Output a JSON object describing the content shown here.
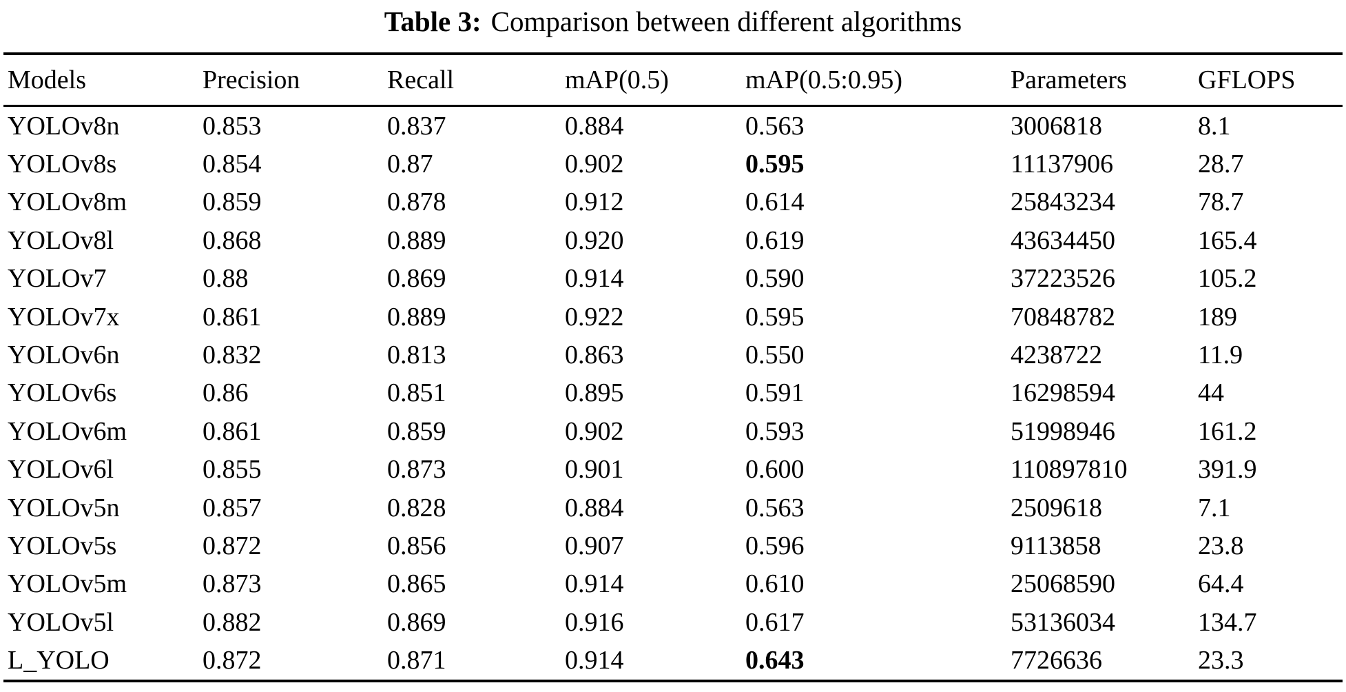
{
  "caption": {
    "label": "Table 3:",
    "text": "Comparison between different algorithms"
  },
  "table": {
    "columns": [
      "Models",
      "Precision",
      "Recall",
      "mAP(0.5)",
      "mAP(0.5:0.95)",
      "Parameters",
      "GFLOPS"
    ],
    "rows": [
      {
        "cells": [
          "YOLOv8n",
          "0.853",
          "0.837",
          "0.884",
          "0.563",
          "3006818",
          "8.1"
        ],
        "bold_cols": []
      },
      {
        "cells": [
          "YOLOv8s",
          "0.854",
          "0.87",
          "0.902",
          "0.595",
          "11137906",
          "28.7"
        ],
        "bold_cols": [
          4
        ]
      },
      {
        "cells": [
          "YOLOv8m",
          "0.859",
          "0.878",
          "0.912",
          "0.614",
          "25843234",
          "78.7"
        ],
        "bold_cols": []
      },
      {
        "cells": [
          "YOLOv8l",
          "0.868",
          "0.889",
          "0.920",
          "0.619",
          "43634450",
          "165.4"
        ],
        "bold_cols": []
      },
      {
        "cells": [
          "YOLOv7",
          "0.88",
          "0.869",
          "0.914",
          "0.590",
          "37223526",
          "105.2"
        ],
        "bold_cols": []
      },
      {
        "cells": [
          "YOLOv7x",
          "0.861",
          "0.889",
          "0.922",
          "0.595",
          "70848782",
          "189"
        ],
        "bold_cols": []
      },
      {
        "cells": [
          "YOLOv6n",
          "0.832",
          "0.813",
          "0.863",
          "0.550",
          "4238722",
          "11.9"
        ],
        "bold_cols": []
      },
      {
        "cells": [
          "YOLOv6s",
          "0.86",
          "0.851",
          "0.895",
          "0.591",
          "16298594",
          "44"
        ],
        "bold_cols": []
      },
      {
        "cells": [
          "YOLOv6m",
          "0.861",
          "0.859",
          "0.902",
          "0.593",
          "51998946",
          "161.2"
        ],
        "bold_cols": []
      },
      {
        "cells": [
          "YOLOv6l",
          "0.855",
          "0.873",
          "0.901",
          "0.600",
          "110897810",
          "391.9"
        ],
        "bold_cols": []
      },
      {
        "cells": [
          "YOLOv5n",
          "0.857",
          "0.828",
          "0.884",
          "0.563",
          "2509618",
          "7.1"
        ],
        "bold_cols": []
      },
      {
        "cells": [
          "YOLOv5s",
          "0.872",
          "0.856",
          "0.907",
          "0.596",
          "9113858",
          "23.8"
        ],
        "bold_cols": []
      },
      {
        "cells": [
          "YOLOv5m",
          "0.873",
          "0.865",
          "0.914",
          "0.610",
          "25068590",
          "64.4"
        ],
        "bold_cols": []
      },
      {
        "cells": [
          "YOLOv5l",
          "0.882",
          "0.869",
          "0.916",
          "0.617",
          "53136034",
          "134.7"
        ],
        "bold_cols": []
      },
      {
        "cells": [
          "L_YOLO",
          "0.872",
          "0.871",
          "0.914",
          "0.643",
          "7726636",
          "23.3"
        ],
        "bold_cols": [
          4
        ]
      }
    ]
  },
  "colors": {
    "text": "#000000",
    "background": "#ffffff",
    "rule": "#000000"
  }
}
